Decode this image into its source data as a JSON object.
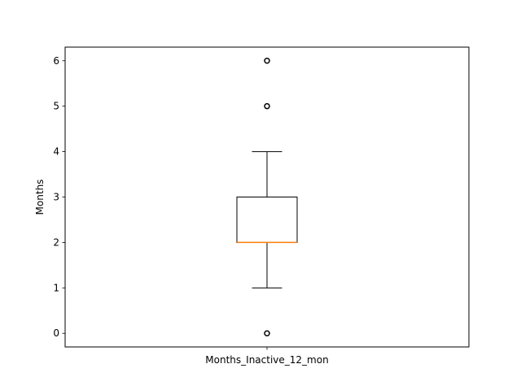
{
  "chart_data": {
    "type": "box",
    "categories": [
      "Months_Inactive_12_mon"
    ],
    "xlabel": "",
    "ylabel": "Months",
    "ylim": [
      -0.3,
      6.3
    ],
    "yticks": [
      0,
      1,
      2,
      3,
      4,
      5,
      6
    ],
    "grid": false,
    "boxes": [
      {
        "name": "Months_Inactive_12_mon",
        "whisker_low": 1,
        "q1": 2,
        "median": 2,
        "q3": 3,
        "whisker_high": 4,
        "outliers": [
          0,
          5,
          6
        ]
      }
    ],
    "colors": {
      "box": "#000000",
      "median": "#ff7f0e",
      "outlier": "#000000"
    }
  }
}
